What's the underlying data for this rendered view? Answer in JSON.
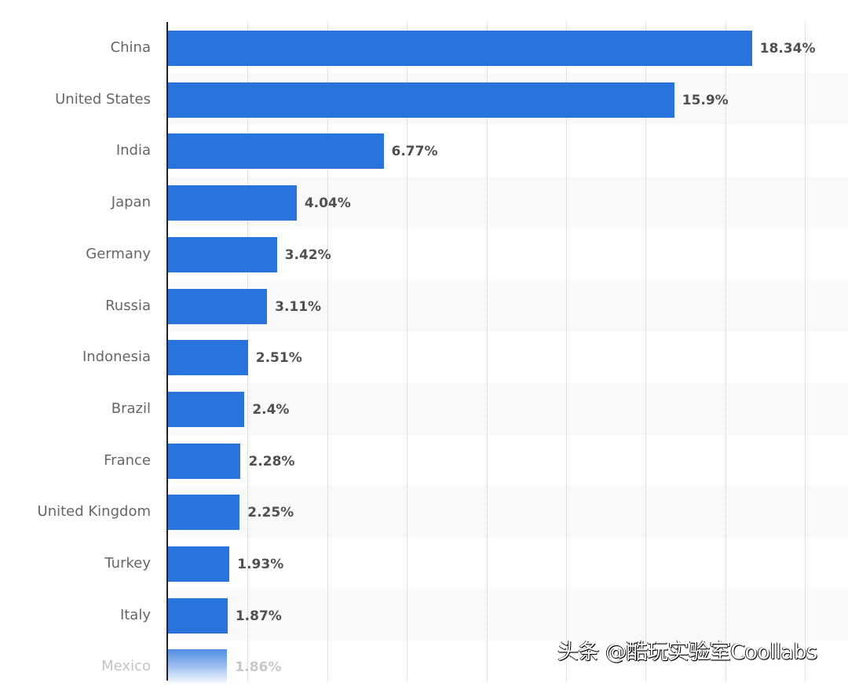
{
  "chart_data": {
    "type": "bar",
    "orientation": "horizontal",
    "title": "",
    "xlabel": "",
    "ylabel": "",
    "categories": [
      "China",
      "United States",
      "India",
      "Japan",
      "Germany",
      "Russia",
      "Indonesia",
      "Brazil",
      "France",
      "United Kingdom",
      "Turkey",
      "Italy",
      "Mexico"
    ],
    "values": [
      18.34,
      15.9,
      6.77,
      4.04,
      3.42,
      3.11,
      2.51,
      2.4,
      2.28,
      2.25,
      1.93,
      1.87,
      1.86
    ],
    "value_labels": [
      "18.34%",
      "15.9%",
      "6.77%",
      "4.04%",
      "3.42%",
      "3.11%",
      "2.51%",
      "2.4%",
      "2.28%",
      "2.25%",
      "1.93%",
      "1.87%",
      "1.86%"
    ],
    "unit": "%",
    "xlim": [
      0,
      20
    ],
    "grid": {
      "vertical": true,
      "style": "dotted",
      "interval": 2.5
    },
    "bar_color": "#2874dc",
    "legend": null,
    "note": "Last row (Mexico) fades out at the bottom edge of the crop"
  },
  "rows": [
    {
      "label": "China",
      "value": "18.34%"
    },
    {
      "label": "United States",
      "value": "15.9%"
    },
    {
      "label": "India",
      "value": "6.77%"
    },
    {
      "label": "Japan",
      "value": "4.04%"
    },
    {
      "label": "Germany",
      "value": "3.42%"
    },
    {
      "label": "Russia",
      "value": "3.11%"
    },
    {
      "label": "Indonesia",
      "value": "2.51%"
    },
    {
      "label": "Brazil",
      "value": "2.4%"
    },
    {
      "label": "France",
      "value": "2.28%"
    },
    {
      "label": "United Kingdom",
      "value": "2.25%"
    },
    {
      "label": "Turkey",
      "value": "1.93%"
    },
    {
      "label": "Italy",
      "value": "1.87%"
    },
    {
      "label": "Mexico",
      "value": "1.86%"
    }
  ],
  "watermark": "头条 @酷玩实验室Coollabs",
  "colors": {
    "bar": "#2874dc",
    "band_alt": "#f9f9f9",
    "label": "#666666",
    "value": "#505050"
  }
}
